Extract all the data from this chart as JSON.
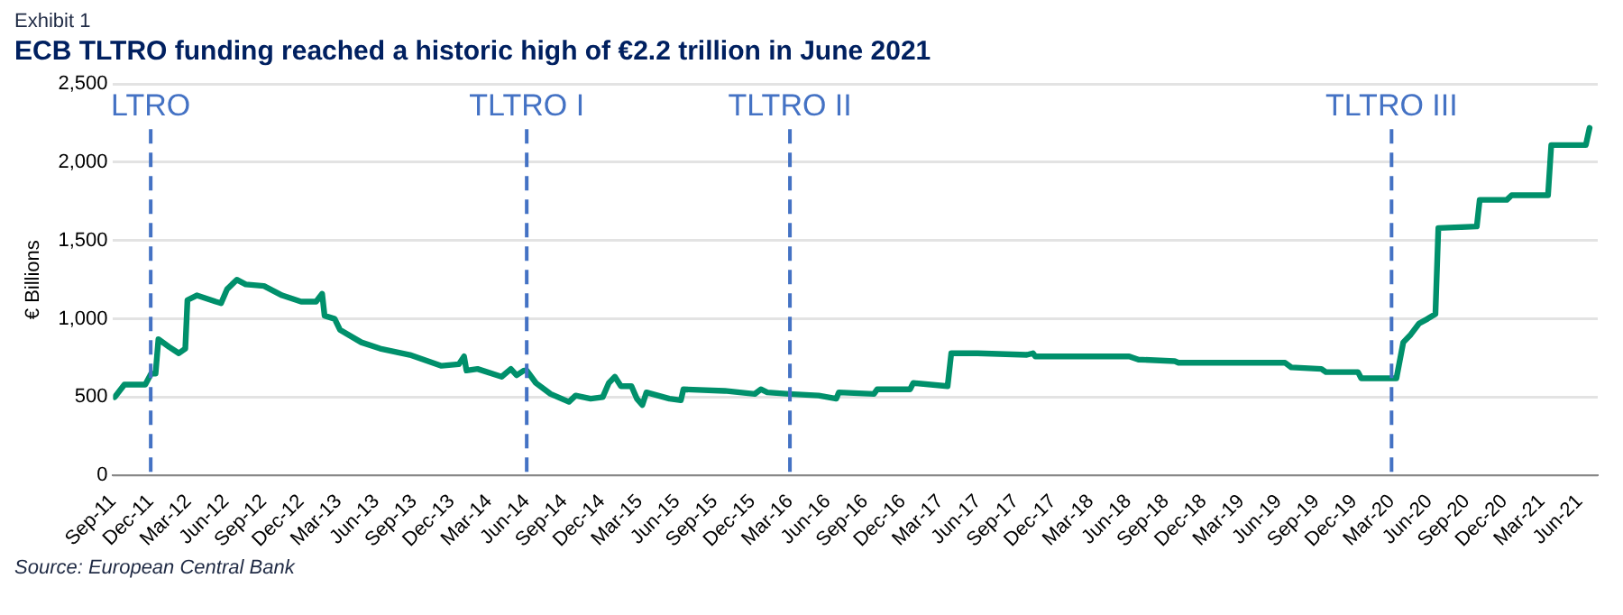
{
  "chart_data": {
    "type": "line",
    "title": "ECB TLTRO funding reached a historic high of €2.2 trillion in June 2021",
    "subtitle": "Exhibit 1",
    "ylabel": "€ Billions",
    "annotations": [
      "Source: European Central Bank"
    ],
    "grid": "y",
    "legend": false,
    "marker": "none",
    "line_style": "solid",
    "xlim": [
      "2011-09",
      "2021-07-15"
    ],
    "xticks": [
      {
        "value": "2011-09",
        "label": "Sep-11"
      },
      {
        "value": "2011-12",
        "label": "Dec-11"
      },
      {
        "value": "2012-03",
        "label": "Mar-12"
      },
      {
        "value": "2012-06",
        "label": "Jun-12"
      },
      {
        "value": "2012-09",
        "label": "Sep-12"
      },
      {
        "value": "2012-12",
        "label": "Dec-12"
      },
      {
        "value": "2013-03",
        "label": "Mar-13"
      },
      {
        "value": "2013-06",
        "label": "Jun-13"
      },
      {
        "value": "2013-09",
        "label": "Sep-13"
      },
      {
        "value": "2013-12",
        "label": "Dec-13"
      },
      {
        "value": "2014-03",
        "label": "Mar-14"
      },
      {
        "value": "2014-06",
        "label": "Jun-14"
      },
      {
        "value": "2014-09",
        "label": "Sep-14"
      },
      {
        "value": "2014-12",
        "label": "Dec-14"
      },
      {
        "value": "2015-03",
        "label": "Mar-15"
      },
      {
        "value": "2015-06",
        "label": "Jun-15"
      },
      {
        "value": "2015-09",
        "label": "Sep-15"
      },
      {
        "value": "2015-12",
        "label": "Dec-15"
      },
      {
        "value": "2016-03",
        "label": "Mar-16"
      },
      {
        "value": "2016-06",
        "label": "Jun-16"
      },
      {
        "value": "2016-09",
        "label": "Sep-16"
      },
      {
        "value": "2016-12",
        "label": "Dec-16"
      },
      {
        "value": "2017-03",
        "label": "Mar-17"
      },
      {
        "value": "2017-06",
        "label": "Jun-17"
      },
      {
        "value": "2017-09",
        "label": "Sep-17"
      },
      {
        "value": "2017-12",
        "label": "Dec-17"
      },
      {
        "value": "2018-03",
        "label": "Mar-18"
      },
      {
        "value": "2018-06",
        "label": "Jun-18"
      },
      {
        "value": "2018-09",
        "label": "Sep-18"
      },
      {
        "value": "2018-12",
        "label": "Dec-18"
      },
      {
        "value": "2019-03",
        "label": "Mar-19"
      },
      {
        "value": "2019-06",
        "label": "Jun-19"
      },
      {
        "value": "2019-09",
        "label": "Sep-19"
      },
      {
        "value": "2019-12",
        "label": "Dec-19"
      },
      {
        "value": "2020-03",
        "label": "Mar-20"
      },
      {
        "value": "2020-06",
        "label": "Jun-20"
      },
      {
        "value": "2020-09",
        "label": "Sep-20"
      },
      {
        "value": "2020-12",
        "label": "Dec-20"
      },
      {
        "value": "2021-03",
        "label": "Mar-21"
      },
      {
        "value": "2021-06",
        "label": "Jun-21"
      }
    ],
    "ylim": [
      0,
      2500
    ],
    "yticks": [
      0,
      500,
      {
        "value": 1000,
        "label": "1,000"
      },
      {
        "value": 1500,
        "label": "1,500"
      },
      {
        "value": 2000,
        "label": "2,000"
      },
      {
        "value": 2500,
        "label": "2,500"
      }
    ],
    "ref_lines": [
      {
        "axis": "x",
        "value": "2011-12",
        "label": "LTRO",
        "color": "#4472c4",
        "line_style": "dashed"
      },
      {
        "axis": "x",
        "value": "2014-06",
        "label": "TLTRO I",
        "color": "#4472c4",
        "line_style": "dashed"
      },
      {
        "axis": "x",
        "value": "2016-03",
        "label": "TLTRO II",
        "color": "#4472c4",
        "line_style": "dashed"
      },
      {
        "axis": "x",
        "value": "2020-03",
        "label": "TLTRO III",
        "color": "#4472c4",
        "line_style": "dashed"
      }
    ],
    "series": [
      {
        "color": "#00906b",
        "x": [
          "2011-09-05",
          "2011-09-28",
          "2011-11-18",
          "2011-12-02",
          "2011-12-13",
          "2011-12-20",
          "2012-01-16",
          "2012-02-08",
          "2012-02-23",
          "2012-02-28",
          "2012-03-22",
          "2012-05-07",
          "2012-05-20",
          "2012-06-04",
          "2012-06-27",
          "2012-07-19",
          "2012-09-02",
          "2012-10-16",
          "2012-12-01",
          "2013-01-07",
          "2013-01-22",
          "2013-01-28",
          "2013-02-20",
          "2013-03-04",
          "2013-04-25",
          "2013-06-10",
          "2013-08-22",
          "2013-11-07",
          "2013-12-19",
          "2014-01-01",
          "2014-01-07",
          "2014-02-03",
          "2014-04-01",
          "2014-04-23",
          "2014-05-07",
          "2014-05-25",
          "2014-06-01",
          "2014-06-23",
          "2014-07-29",
          "2014-09-12",
          "2014-09-28",
          "2014-11-04",
          "2014-12-03",
          "2014-12-18",
          "2015-01-02",
          "2015-01-17",
          "2015-02-11",
          "2015-02-23",
          "2015-03-08",
          "2015-03-18",
          "2015-05-13",
          "2015-06-10",
          "2015-06-16",
          "2015-09-25",
          "2015-12-07",
          "2015-12-22",
          "2016-01-07",
          "2016-02-28",
          "2016-05-10",
          "2016-06-22",
          "2016-06-28",
          "2016-09-22",
          "2016-09-30",
          "2016-12-19",
          "2016-12-27",
          "2017-03-19",
          "2017-03-28",
          "2017-05-31",
          "2017-09-28",
          "2017-10-13",
          "2017-10-19",
          "2018-01-24",
          "2018-06-03",
          "2018-06-25",
          "2018-09-22",
          "2018-10-01",
          "2019-06-16",
          "2019-07-01",
          "2019-09-13",
          "2019-09-24",
          "2019-12-11",
          "2019-12-19",
          "2020-03-13",
          "2020-03-30",
          "2020-04-17",
          "2020-05-07",
          "2020-05-28",
          "2020-06-16",
          "2020-06-23",
          "2020-09-25",
          "2020-10-02",
          "2020-12-07",
          "2020-12-19",
          "2021-03-16",
          "2021-03-24",
          "2021-06-16",
          "2021-06-25"
        ],
        "values": [
          500,
          580,
          580,
          650,
          650,
          870,
          820,
          780,
          810,
          1120,
          1150,
          1110,
          1100,
          1190,
          1250,
          1220,
          1210,
          1150,
          1110,
          1110,
          1160,
          1020,
          1000,
          930,
          850,
          810,
          770,
          700,
          710,
          760,
          670,
          680,
          630,
          680,
          640,
          670,
          670,
          590,
          520,
          470,
          510,
          490,
          500,
          590,
          630,
          570,
          570,
          490,
          450,
          530,
          490,
          480,
          550,
          540,
          520,
          550,
          530,
          520,
          510,
          490,
          530,
          520,
          550,
          550,
          590,
          570,
          780,
          780,
          770,
          780,
          760,
          760,
          760,
          740,
          730,
          720,
          720,
          690,
          680,
          660,
          660,
          620,
          620,
          850,
          900,
          970,
          1000,
          1030,
          1580,
          1590,
          1760,
          1760,
          1790,
          1790,
          2110,
          2110,
          2220
        ]
      }
    ]
  }
}
